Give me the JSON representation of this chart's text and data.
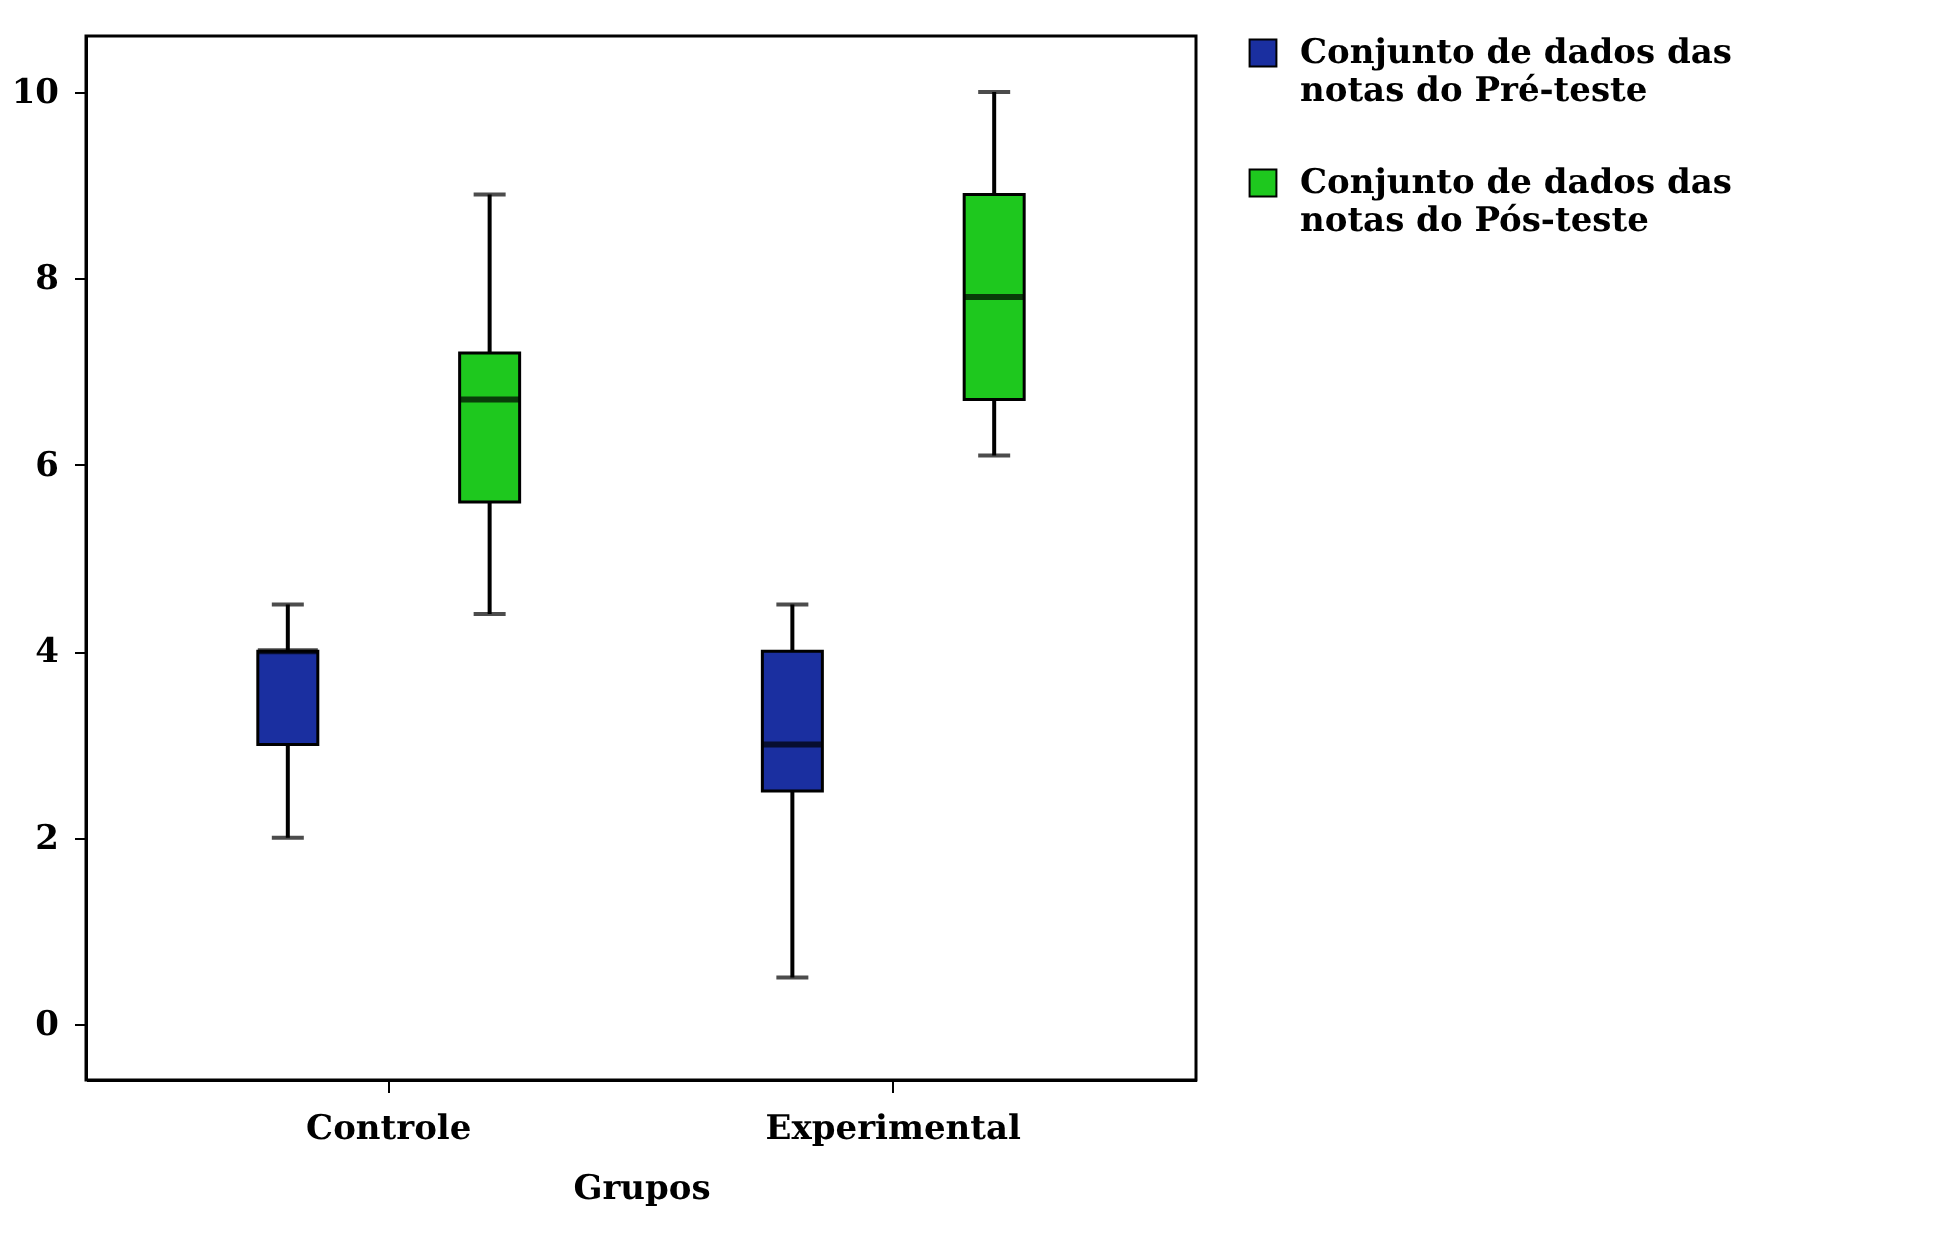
{
  "chart_data": {
    "type": "box",
    "xlabel": "Grupos",
    "categories": [
      "Controle",
      "Experimental"
    ],
    "ylim": [
      -0.6,
      10.6
    ],
    "yticks": [
      0,
      2,
      4,
      6,
      8,
      10
    ],
    "grid": false,
    "legend": "right",
    "series": [
      {
        "name": "Conjunto de dados das notas do Pré-teste",
        "color": "#1a2fa0",
        "boxes": [
          {
            "low": 2.0,
            "q1": 3.0,
            "median": 4.0,
            "q3": 4.0,
            "high": 4.5
          },
          {
            "low": 0.5,
            "q1": 2.5,
            "median": 3.0,
            "q3": 4.0,
            "high": 4.5
          }
        ]
      },
      {
        "name": "Conjunto de dados das notas do Pós-teste",
        "color": "#1ec81e",
        "boxes": [
          {
            "low": 4.4,
            "q1": 5.6,
            "median": 6.7,
            "q3": 7.2,
            "high": 8.9
          },
          {
            "low": 6.1,
            "q1": 6.7,
            "median": 7.8,
            "q3": 8.9,
            "high": 10.0
          }
        ]
      }
    ]
  }
}
